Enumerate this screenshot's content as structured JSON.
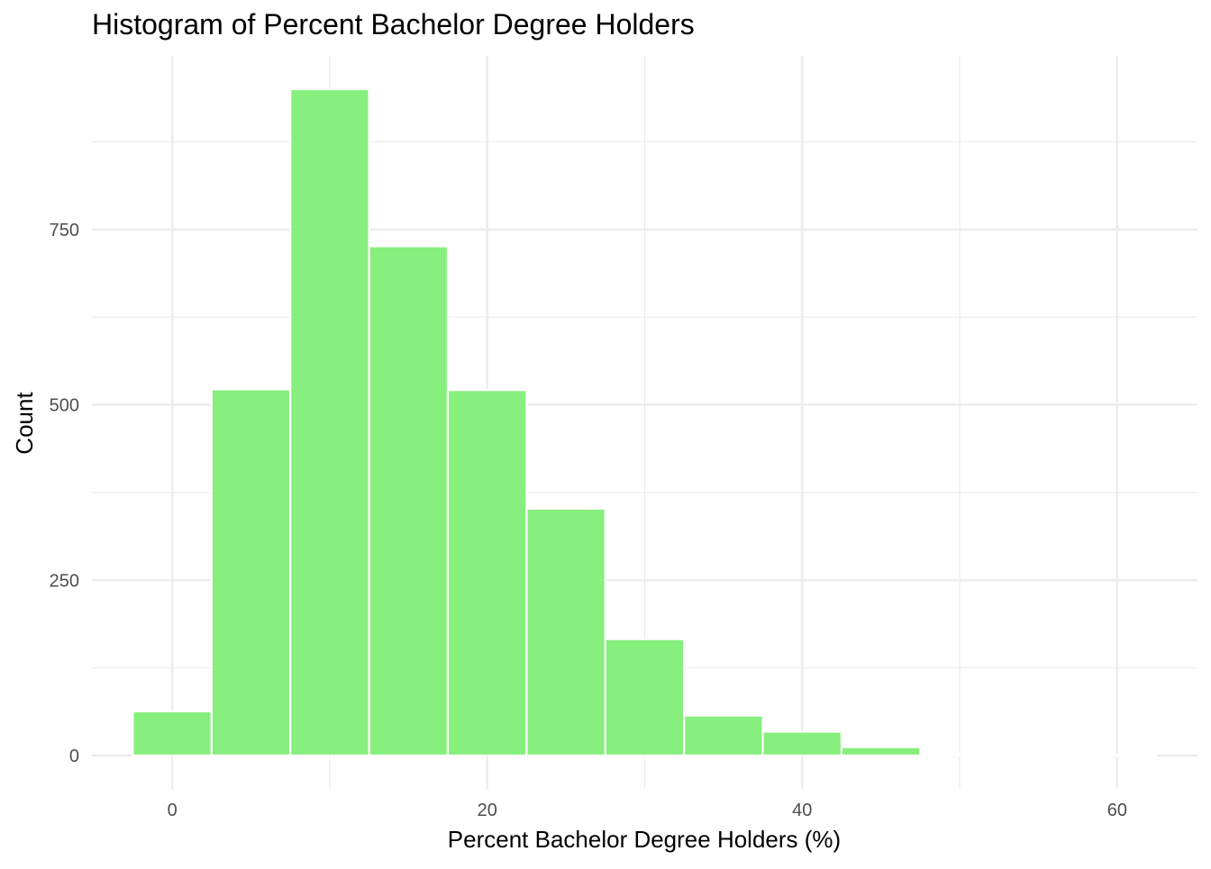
{
  "chart_data": {
    "type": "bar",
    "subtype": "histogram",
    "title": "Histogram of Percent Bachelor Degree Holders",
    "xlabel": "Percent Bachelor Degree Holders (%)",
    "ylabel": "Count",
    "bin_width": 5,
    "bins": [
      {
        "x_start": -2.5,
        "x_end": 2.5,
        "count": 63
      },
      {
        "x_start": 2.5,
        "x_end": 7.5,
        "count": 522
      },
      {
        "x_start": 7.5,
        "x_end": 12.5,
        "count": 950
      },
      {
        "x_start": 12.5,
        "x_end": 17.5,
        "count": 726
      },
      {
        "x_start": 17.5,
        "x_end": 22.5,
        "count": 521
      },
      {
        "x_start": 22.5,
        "x_end": 27.5,
        "count": 352
      },
      {
        "x_start": 27.5,
        "x_end": 32.5,
        "count": 166
      },
      {
        "x_start": 32.5,
        "x_end": 37.5,
        "count": 57
      },
      {
        "x_start": 37.5,
        "x_end": 42.5,
        "count": 34
      },
      {
        "x_start": 42.5,
        "x_end": 47.5,
        "count": 12
      },
      {
        "x_start": 47.5,
        "x_end": 52.5,
        "count": 2
      },
      {
        "x_start": 52.5,
        "x_end": 57.5,
        "count": 1
      },
      {
        "x_start": 57.5,
        "x_end": 62.5,
        "count": 1
      }
    ],
    "xlim": [
      -5.1,
      65.1
    ],
    "ylim": [
      -47.5,
      997.5
    ],
    "x_ticks": [
      0,
      20,
      40,
      60
    ],
    "x_tick_labels": [
      "0",
      "20",
      "40",
      "60"
    ],
    "x_minor_ticks": [
      10,
      30,
      50
    ],
    "y_ticks": [
      0,
      250,
      500,
      750
    ],
    "y_tick_labels": [
      "0",
      "250",
      "500",
      "750"
    ],
    "y_minor_ticks": [
      125,
      375,
      625,
      875
    ],
    "grid": true,
    "legend": "none",
    "colors": {
      "bar_fill": "#86ef7d",
      "bar_outline": "#ffffff",
      "grid": "#ebebeb",
      "background": "#ffffff"
    }
  }
}
